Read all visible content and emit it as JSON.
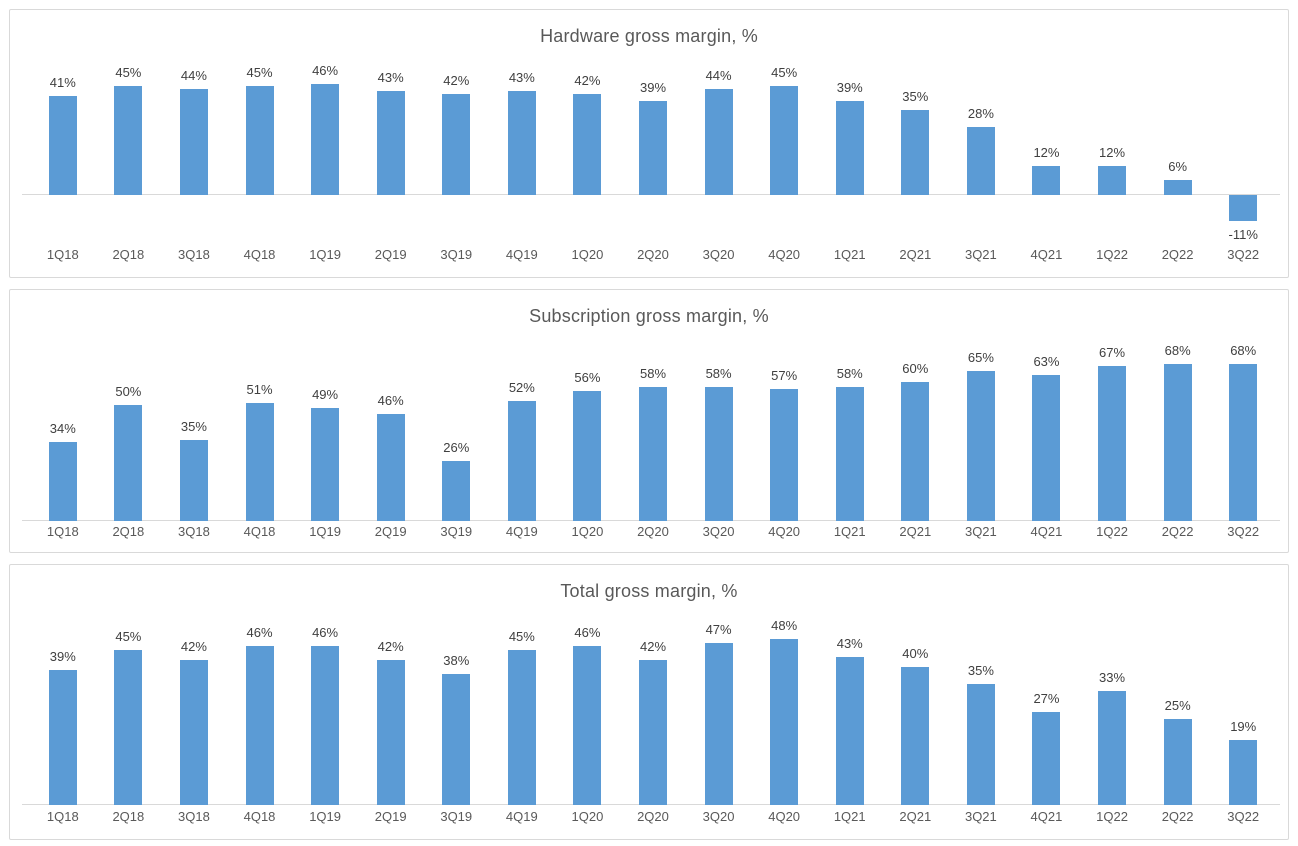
{
  "colors": {
    "bar_fill": "#5B9BD5",
    "title_text": "#595959",
    "data_label_text": "#404040",
    "tick_label_text": "#595959",
    "axis_line": "#D9D9D9",
    "panel_border": "#D9D9D9",
    "background": "#ffffff"
  },
  "chart_data": [
    {
      "type": "bar",
      "title": "Hardware gross margin, %",
      "categories": [
        "1Q18",
        "2Q18",
        "3Q18",
        "4Q18",
        "1Q19",
        "2Q19",
        "3Q19",
        "4Q19",
        "1Q20",
        "2Q20",
        "3Q20",
        "4Q20",
        "1Q21",
        "2Q21",
        "3Q21",
        "4Q21",
        "1Q22",
        "2Q22",
        "3Q22"
      ],
      "values": [
        41,
        45,
        44,
        45,
        46,
        43,
        42,
        43,
        42,
        39,
        44,
        45,
        39,
        35,
        28,
        12,
        12,
        6,
        -11
      ],
      "labels": [
        "41%",
        "45%",
        "44%",
        "45%",
        "46%",
        "43%",
        "42%",
        "43%",
        "42%",
        "39%",
        "44%",
        "45%",
        "39%",
        "35%",
        "28%",
        "12%",
        "12%",
        "6%",
        "-11%"
      ],
      "xlabel": "",
      "ylabel": "",
      "ylim": [
        -11,
        46
      ],
      "grid": false,
      "legend": "none",
      "data_label_position": "outside-end",
      "x_axis_label_position": "low"
    },
    {
      "type": "bar",
      "title": "Subscription gross margin, %",
      "categories": [
        "1Q18",
        "2Q18",
        "3Q18",
        "4Q18",
        "1Q19",
        "2Q19",
        "3Q19",
        "4Q19",
        "1Q20",
        "2Q20",
        "3Q20",
        "4Q20",
        "1Q21",
        "2Q21",
        "3Q21",
        "4Q21",
        "1Q22",
        "2Q22",
        "3Q22"
      ],
      "values": [
        34,
        50,
        35,
        51,
        49,
        46,
        26,
        52,
        56,
        58,
        58,
        57,
        58,
        60,
        65,
        63,
        67,
        68,
        68
      ],
      "labels": [
        "34%",
        "50%",
        "35%",
        "51%",
        "49%",
        "46%",
        "26%",
        "52%",
        "56%",
        "58%",
        "58%",
        "57%",
        "58%",
        "60%",
        "65%",
        "63%",
        "67%",
        "68%",
        "68%"
      ],
      "xlabel": "",
      "ylabel": "",
      "ylim": [
        0,
        68
      ],
      "grid": false,
      "legend": "none",
      "data_label_position": "outside-end",
      "x_axis_label_position": "low"
    },
    {
      "type": "bar",
      "title": "Total gross margin, %",
      "categories": [
        "1Q18",
        "2Q18",
        "3Q18",
        "4Q18",
        "1Q19",
        "2Q19",
        "3Q19",
        "4Q19",
        "1Q20",
        "2Q20",
        "3Q20",
        "4Q20",
        "1Q21",
        "2Q21",
        "3Q21",
        "4Q21",
        "1Q22",
        "2Q22",
        "3Q22"
      ],
      "values": [
        39,
        45,
        42,
        46,
        46,
        42,
        38,
        45,
        46,
        42,
        47,
        48,
        43,
        40,
        35,
        27,
        33,
        25,
        19
      ],
      "labels": [
        "39%",
        "45%",
        "42%",
        "46%",
        "46%",
        "42%",
        "38%",
        "45%",
        "46%",
        "42%",
        "47%",
        "48%",
        "43%",
        "40%",
        "35%",
        "27%",
        "33%",
        "25%",
        "19%"
      ],
      "xlabel": "",
      "ylabel": "",
      "ylim": [
        0,
        48
      ],
      "grid": false,
      "legend": "none",
      "data_label_position": "outside-end",
      "x_axis_label_position": "low"
    }
  ]
}
